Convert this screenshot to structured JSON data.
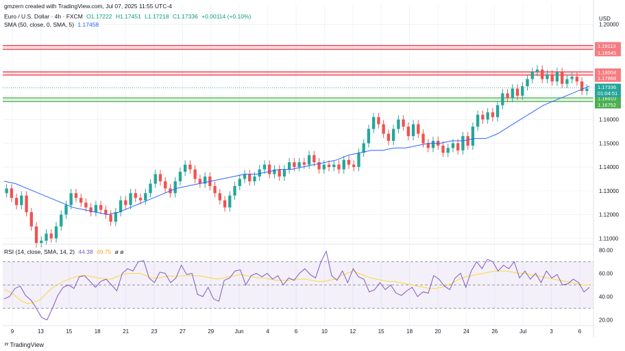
{
  "header": {
    "creator": "gmzern created with TradingView.com, Jul 07, 2025 11:55 UTC-4",
    "symbol": "Euro / U.S. Dollar · 4h · FXCM",
    "open": "O1.17222",
    "high": "H1.17451",
    "low": "L1.17218",
    "close": "C1.17336",
    "change": "+0.00114 (+0.10%)",
    "sma_label": "SMA (50, close, 0, SMA, 5)",
    "sma_value": "1.17458",
    "rsi_label": "RSI (14, close, SMA, 14, 2)",
    "rsi_value": "44.38",
    "rsi_ma_value": "49.75",
    "rsi_extra": "ø ø"
  },
  "currency": "USD",
  "footer_brand": "TradingView",
  "colors": {
    "up": "#26a69a",
    "down": "#ef5350",
    "sma": "#2962ff",
    "rsi": "#7e57c2",
    "rsi_ma": "#fdd835",
    "resistance": "#f23645",
    "support": "#4caf50"
  },
  "chart_data": [
    {
      "type": "line",
      "name": "price-panel",
      "y_ticks": [
        "1.20000",
        "1.19000",
        "1.18000",
        "1.17000",
        "1.16000",
        "1.15000",
        "1.14000",
        "1.13000",
        "1.12000",
        "1.11000"
      ],
      "ylim": [
        1.1075,
        1.2025
      ],
      "x_tick_labels": [
        "9",
        "13",
        "15",
        "18",
        "21",
        "23",
        "27",
        "29",
        "Jun",
        "4",
        "6",
        "10",
        "12",
        "15",
        "18",
        "20",
        "24",
        "26",
        "Jul",
        "3",
        "6"
      ],
      "zones": [
        {
          "type": "resistance",
          "top": 1.19113,
          "bottom": 1.18945,
          "labels": [
            "1.19113",
            "1.18945"
          ]
        },
        {
          "type": "resistance",
          "top": 1.18004,
          "bottom": 1.17868,
          "labels": [
            "1.18004",
            "1.17868"
          ]
        },
        {
          "type": "support",
          "top": 1.1691,
          "bottom": 1.16752,
          "labels": [
            "1.16910",
            "1.16752"
          ]
        }
      ],
      "last_price": {
        "value": 1.17336,
        "label": "1.17336",
        "countdown": "01:04:51"
      },
      "close_path": [
        1.131,
        1.127,
        1.124,
        1.128,
        1.121,
        1.115,
        1.108,
        1.109,
        1.112,
        1.11,
        1.115,
        1.12,
        1.124,
        1.129,
        1.127,
        1.125,
        1.123,
        1.121,
        1.124,
        1.122,
        1.12,
        1.117,
        1.121,
        1.126,
        1.124,
        1.129,
        1.127,
        1.126,
        1.129,
        1.133,
        1.137,
        1.134,
        1.131,
        1.129,
        1.134,
        1.138,
        1.141,
        1.139,
        1.135,
        1.133,
        1.136,
        1.132,
        1.129,
        1.126,
        1.123,
        1.128,
        1.132,
        1.135,
        1.137,
        1.134,
        1.136,
        1.139,
        1.141,
        1.137,
        1.139,
        1.136,
        1.139,
        1.142,
        1.14,
        1.142,
        1.141,
        1.145,
        1.142,
        1.139,
        1.141,
        1.14,
        1.141,
        1.139,
        1.143,
        1.141,
        1.14,
        1.146,
        1.15,
        1.156,
        1.161,
        1.158,
        1.154,
        1.151,
        1.156,
        1.16,
        1.157,
        1.153,
        1.158,
        1.154,
        1.15,
        1.148,
        1.151,
        1.149,
        1.146,
        1.148,
        1.15,
        1.147,
        1.153,
        1.149,
        1.157,
        1.162,
        1.16,
        1.163,
        1.161,
        1.166,
        1.171,
        1.169,
        1.173,
        1.17,
        1.174,
        1.177,
        1.18,
        1.181,
        1.177,
        1.179,
        1.176,
        1.18,
        1.175,
        1.177,
        1.178,
        1.176,
        1.172,
        1.173
      ],
      "sma_path": [
        1.134,
        1.133,
        1.131,
        1.129,
        1.127,
        1.125,
        1.123,
        1.122,
        1.121,
        1.12,
        1.121,
        1.123,
        1.125,
        1.127,
        1.129,
        1.131,
        1.132,
        1.133,
        1.134,
        1.135,
        1.136,
        1.137,
        1.137,
        1.138,
        1.139,
        1.139,
        1.14,
        1.141,
        1.142,
        1.143,
        1.145,
        1.146,
        1.147,
        1.147,
        1.148,
        1.148,
        1.149,
        1.15,
        1.15,
        1.151,
        1.151,
        1.152,
        1.152,
        1.154,
        1.157,
        1.16,
        1.163,
        1.166,
        1.168,
        1.17,
        1.172,
        1.174
      ],
      "series": [
        {
          "name": "SMA (50, close, 0, SMA, 5)",
          "last_value": 1.17458
        }
      ]
    },
    {
      "type": "line",
      "name": "rsi-panel",
      "y_ticks": [
        "80.00",
        "60.00",
        "40.00",
        "20.00"
      ],
      "ylim": [
        15,
        85
      ],
      "bands": {
        "upper": 70,
        "middle": 50,
        "lower": 30
      },
      "rsi_path": [
        38,
        40,
        47,
        49,
        41,
        37,
        30,
        22,
        20,
        30,
        41,
        48,
        50,
        47,
        57,
        58,
        53,
        48,
        53,
        55,
        50,
        45,
        60,
        64,
        62,
        70,
        71,
        56,
        52,
        61,
        60,
        52,
        56,
        67,
        59,
        60,
        42,
        40,
        48,
        38,
        36,
        54,
        56,
        62,
        63,
        50,
        58,
        60,
        57,
        60,
        55,
        58,
        50,
        56,
        54,
        60,
        64,
        59,
        56,
        70,
        79,
        58,
        54,
        62,
        52,
        64,
        57,
        55,
        44,
        46,
        52,
        46,
        50,
        43,
        41,
        45,
        48,
        40,
        44,
        43,
        58,
        55,
        49,
        46,
        56,
        60,
        48,
        62,
        70,
        64,
        72,
        70,
        62,
        67,
        64,
        70,
        56,
        62,
        55,
        60,
        52,
        62,
        56,
        59,
        50,
        51,
        55,
        52,
        44,
        48
      ],
      "rsi_ma_path": [
        46,
        44,
        40,
        36,
        34,
        35,
        37,
        42,
        47,
        50,
        53,
        55,
        57,
        58,
        58,
        57,
        56,
        55,
        55,
        57,
        59,
        60,
        60,
        60,
        58,
        56,
        56,
        57,
        58,
        57,
        58,
        58,
        58,
        58,
        57,
        56,
        55,
        56,
        57,
        58,
        59,
        58,
        57,
        56,
        56,
        55,
        54,
        54,
        54,
        55,
        55,
        55,
        54,
        53,
        53,
        54,
        55,
        58,
        60,
        62,
        60,
        58,
        56,
        55,
        54,
        53,
        53,
        52,
        51,
        50,
        49,
        48,
        47,
        47,
        48,
        50,
        52,
        55,
        57,
        58,
        59,
        60,
        61,
        62,
        62,
        62,
        61,
        60,
        60,
        59,
        58,
        57,
        56,
        55,
        54,
        53,
        52,
        51,
        50,
        50
      ],
      "series": [
        {
          "name": "RSI (14, close, SMA, 14, 2)",
          "last_value": 44.38
        },
        {
          "name": "RSI MA",
          "last_value": 49.75
        }
      ]
    }
  ]
}
